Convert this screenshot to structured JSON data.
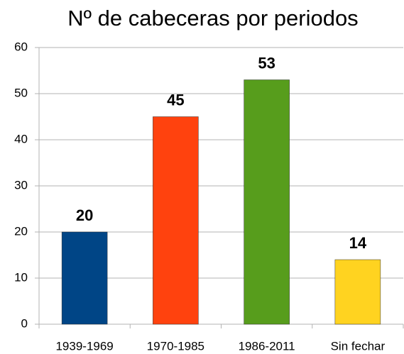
{
  "chart_data": {
    "type": "bar",
    "title": "Nº de cabeceras por periodos",
    "categories": [
      "1939-1969",
      "1970-1985",
      "1986-2011",
      "Sin fechar"
    ],
    "values": [
      20,
      45,
      53,
      14
    ],
    "colors": [
      "#004586",
      "#ff420e",
      "#579d1c",
      "#ffd320"
    ],
    "ylim": [
      0,
      60
    ],
    "yticks": [
      0,
      10,
      20,
      30,
      40,
      50,
      60
    ],
    "grid": true
  }
}
